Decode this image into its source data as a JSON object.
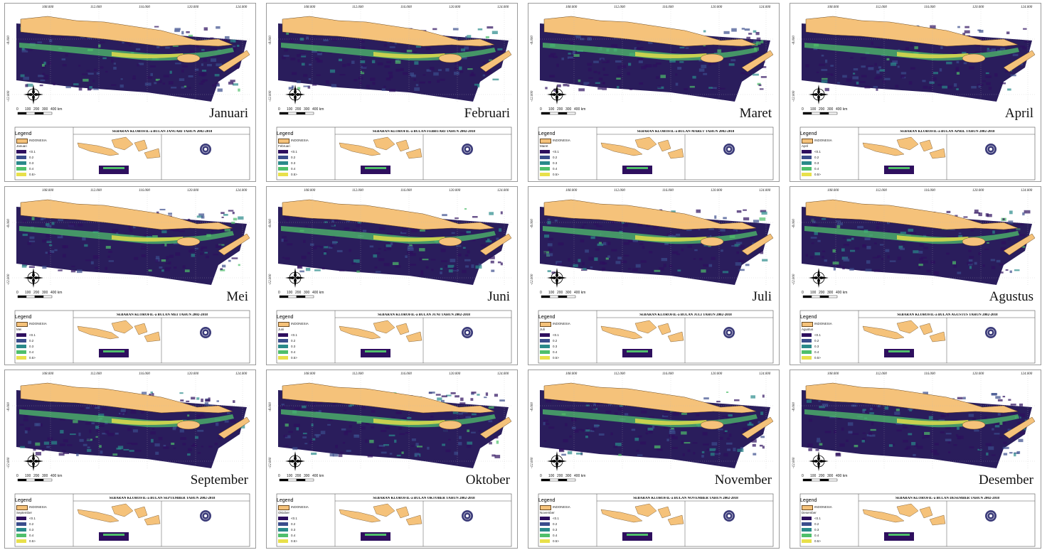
{
  "panels": [
    {
      "month": "Januari",
      "title": "SEBARAN  KLOROFIL-a BULAN JANUARI TAHUN 2002-2018"
    },
    {
      "month": "Februari",
      "title": "SEBARAN  KLOROFIL-a BULAN FEBRUARI TAHUN 2002-2018"
    },
    {
      "month": "Maret",
      "title": "SEBARAN  KLOROFIL-a BULAN MARET TAHUN 2002-2018"
    },
    {
      "month": "April",
      "title": "SEBARAN  KLOROFIL-a BULAN APRIL TAHUN 2002-2018"
    },
    {
      "month": "Mei",
      "title": "SEBARAN  KLOROFIL-a BULAN MEI TAHUN 2002-2018"
    },
    {
      "month": "Juni",
      "title": "SEBARAN  KLOROFIL-a BULAN JUNI TAHUN 2002-2018"
    },
    {
      "month": "Juli",
      "title": "SEBARAN  KLOROFIL-a BULAN JULI TAHUN 2002-2018"
    },
    {
      "month": "Agustus",
      "title": "SEBARAN  KLOROFIL-a BULAN AGUSTUS TAHUN 2002-2018"
    },
    {
      "month": "September",
      "title": "SEBARAN  KLOROFIL-a BULAN SEPTEMBER TAHUN 2002-2018"
    },
    {
      "month": "Oktober",
      "title": "SEBARAN  KLOROFIL-a BULAN OKTOBER TAHUN 2002-2018"
    },
    {
      "month": "November",
      "title": "SEBARAN  KLOROFIL-a BULAN NOVEMBER TAHUN 2002-2018"
    },
    {
      "month": "Desember",
      "title": "SEBARAN  KLOROFIL-a BULAN DESEMBER TAHUN 2002-2018"
    }
  ],
  "legend": {
    "title": "Legend",
    "land": "INDONESIA",
    "classes": [
      "<0.1",
      "0.2",
      "0.3",
      "0.4",
      "0.5>"
    ],
    "colors": [
      "#2e0f5e",
      "#3b4d8c",
      "#2a8a8a",
      "#4fbf6b",
      "#e8e04a"
    ]
  },
  "grid_labels": {
    "lon": [
      "108.000",
      "112.000",
      "116.000",
      "120.000",
      "124.000"
    ],
    "lat": [
      "-8.000",
      "-12.000"
    ]
  },
  "scale_labels": [
    "0",
    "100",
    "200",
    "300",
    "400 km"
  ],
  "colors": {
    "land": "#f5c27a",
    "land_stroke": "#6b4a22",
    "sea_bg": "#ffffff",
    "frame": "#9a9a9a"
  }
}
